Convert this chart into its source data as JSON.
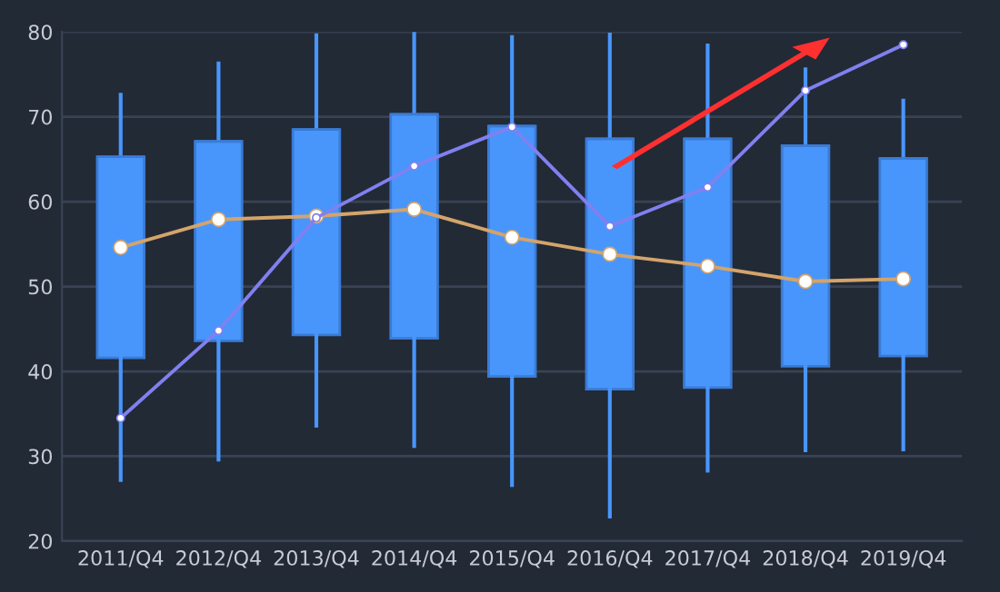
{
  "chart_data": {
    "type": "box",
    "categories": [
      "2011/Q4",
      "2012/Q4",
      "2013/Q4",
      "2014/Q4",
      "2015/Q4",
      "2016/Q4",
      "2017/Q4",
      "2018/Q4",
      "2019/Q4"
    ],
    "color": "#4896fc",
    "boxes": [
      {
        "low": 27.2,
        "q1": 41.6,
        "median": 65.3,
        "q3": 65.3,
        "high": 72.6
      },
      {
        "low": 29.6,
        "q1": 43.6,
        "median": 67.1,
        "q3": 67.1,
        "high": 76.3
      },
      {
        "low": 33.6,
        "q1": 44.3,
        "median": 68.5,
        "q3": 68.5,
        "high": 79.6
      },
      {
        "low": 31.2,
        "q1": 43.9,
        "median": 70.3,
        "q3": 70.3,
        "high": 79.8
      },
      {
        "low": 26.6,
        "q1": 39.4,
        "median": 68.9,
        "q3": 68.9,
        "high": 79.4
      },
      {
        "low": 22.9,
        "q1": 37.9,
        "median": 67.4,
        "q3": 67.4,
        "high": 79.7
      },
      {
        "low": 28.3,
        "q1": 38.1,
        "median": 67.4,
        "q3": 67.4,
        "high": 78.4
      },
      {
        "low": 30.7,
        "q1": 40.6,
        "median": 66.6,
        "q3": 66.6,
        "high": 75.6
      },
      {
        "low": 30.8,
        "q1": 41.8,
        "median": 65.1,
        "q3": 65.1,
        "high": 71.9
      }
    ],
    "series": [
      {
        "type": "line",
        "color": "#d4a46a",
        "values": [
          54.6,
          57.9,
          58.3,
          59.1,
          55.8,
          53.8,
          52.4,
          50.6,
          50.9
        ]
      },
      {
        "type": "line",
        "color": "#8080f0",
        "values": [
          34.5,
          44.8,
          58.1,
          64.2,
          68.8,
          57.1,
          61.7,
          73.1,
          78.5
        ]
      }
    ],
    "marker": "circle",
    "ylim": [
      20,
      80
    ],
    "yticks": [
      20,
      30,
      40,
      50,
      60,
      70,
      80
    ],
    "grid": "y"
  }
}
